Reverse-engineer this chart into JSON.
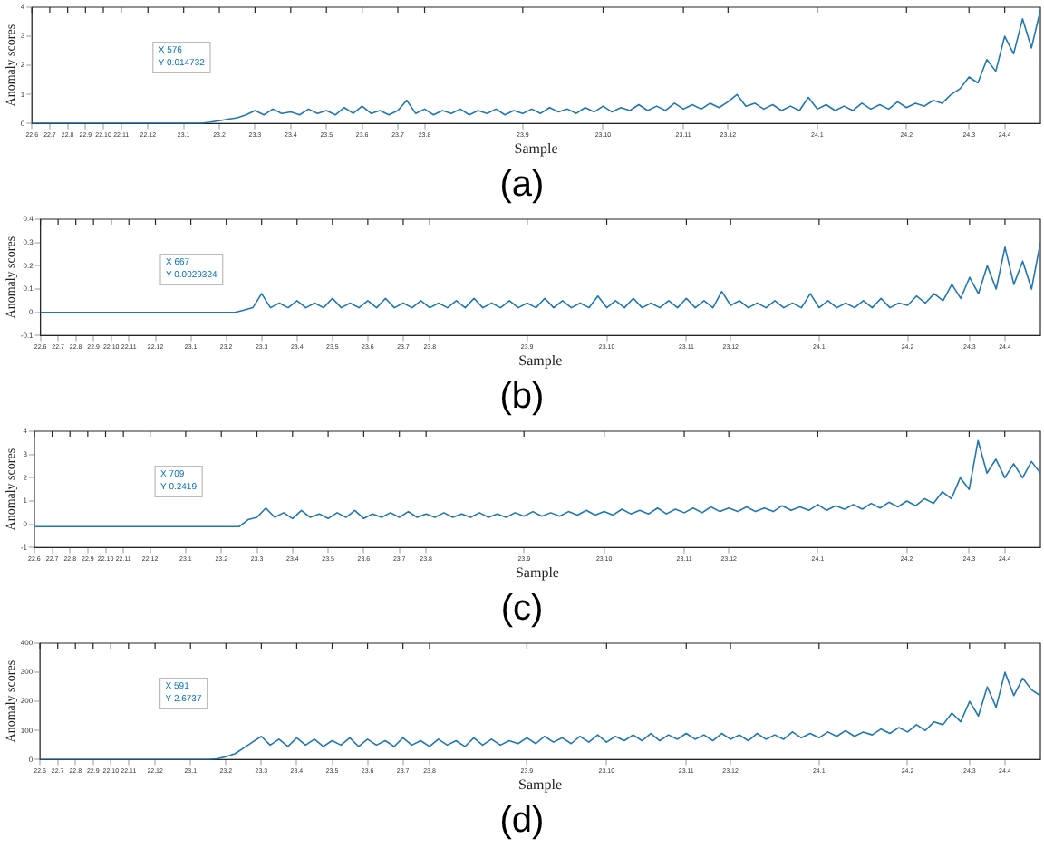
{
  "chart_data": [
    {
      "type": "line",
      "xlabel": "Sample",
      "ylabel": "Anomaly scores",
      "color": "#1f77b4",
      "ylim": [
        0,
        4
      ],
      "yticks": [
        0,
        1,
        2,
        3,
        4
      ],
      "categories": [
        "22.6",
        null,
        "22.7",
        null,
        "22.8",
        null,
        "22.9",
        null,
        "22.10",
        null,
        "22.11",
        null,
        null,
        "22.12",
        null,
        null,
        null,
        "23.1",
        null,
        null,
        null,
        "23.2",
        null,
        null,
        null,
        "23.3",
        null,
        null,
        null,
        "23.4",
        null,
        null,
        null,
        "23.5",
        null,
        null,
        null,
        "23.6",
        null,
        null,
        null,
        "23.7",
        null,
        null,
        "23.8",
        null,
        null,
        null,
        null,
        null,
        null,
        null,
        null,
        null,
        null,
        "23.9",
        null,
        null,
        null,
        null,
        null,
        null,
        null,
        null,
        "23.10",
        null,
        null,
        null,
        null,
        null,
        null,
        null,
        null,
        "23.11",
        null,
        null,
        null,
        null,
        "23.12",
        null,
        null,
        null,
        null,
        null,
        null,
        null,
        null,
        null,
        "24.1",
        null,
        null,
        null,
        null,
        null,
        null,
        null,
        null,
        null,
        "24.2",
        null,
        null,
        null,
        null,
        null,
        null,
        "24.3",
        null,
        null,
        null,
        "24.4",
        null,
        null,
        null,
        null
      ],
      "values": [
        0.01,
        0.01,
        0.01,
        0.01,
        0.01,
        0.01,
        0.01,
        0.01,
        0.01,
        0.01,
        0.01,
        0.01,
        0.01,
        0.01,
        0.01,
        0.01,
        0.01,
        0.01,
        0.01,
        0.01,
        0.05,
        0.1,
        0.15,
        0.2,
        0.3,
        0.45,
        0.3,
        0.5,
        0.35,
        0.4,
        0.3,
        0.5,
        0.35,
        0.45,
        0.3,
        0.55,
        0.35,
        0.6,
        0.35,
        0.45,
        0.3,
        0.45,
        0.8,
        0.35,
        0.5,
        0.3,
        0.45,
        0.35,
        0.5,
        0.3,
        0.45,
        0.35,
        0.5,
        0.3,
        0.45,
        0.35,
        0.5,
        0.35,
        0.55,
        0.4,
        0.5,
        0.35,
        0.55,
        0.4,
        0.6,
        0.4,
        0.55,
        0.45,
        0.65,
        0.45,
        0.6,
        0.45,
        0.7,
        0.5,
        0.65,
        0.5,
        0.7,
        0.55,
        0.75,
        1.0,
        0.6,
        0.7,
        0.5,
        0.65,
        0.45,
        0.6,
        0.45,
        0.9,
        0.5,
        0.65,
        0.45,
        0.6,
        0.45,
        0.7,
        0.5,
        0.65,
        0.5,
        0.75,
        0.55,
        0.7,
        0.6,
        0.8,
        0.7,
        1.0,
        1.2,
        1.6,
        1.4,
        2.2,
        1.8,
        3.0,
        2.4,
        3.6,
        2.6,
        3.9
      ],
      "annotations": [
        "X 576\nY 0.014732",
        "(a)"
      ]
    },
    {
      "type": "line",
      "xlabel": "Sample",
      "ylabel": "Anomaly scores",
      "color": "#1f77b4",
      "ylim": [
        -0.1,
        0.4
      ],
      "yticks": [
        -0.1,
        0,
        0.1,
        0.2,
        0.3,
        0.4
      ],
      "categories": [
        "22.6",
        null,
        "22.7",
        null,
        "22.8",
        null,
        "22.9",
        null,
        "22.10",
        null,
        "22.11",
        null,
        null,
        "22.12",
        null,
        null,
        null,
        "23.1",
        null,
        null,
        null,
        "23.2",
        null,
        null,
        null,
        "23.3",
        null,
        null,
        null,
        "23.4",
        null,
        null,
        null,
        "23.5",
        null,
        null,
        null,
        "23.6",
        null,
        null,
        null,
        "23.7",
        null,
        null,
        "23.8",
        null,
        null,
        null,
        null,
        null,
        null,
        null,
        null,
        null,
        null,
        "23.9",
        null,
        null,
        null,
        null,
        null,
        null,
        null,
        null,
        "23.10",
        null,
        null,
        null,
        null,
        null,
        null,
        null,
        null,
        "23.11",
        null,
        null,
        null,
        null,
        "23.12",
        null,
        null,
        null,
        null,
        null,
        null,
        null,
        null,
        null,
        "24.1",
        null,
        null,
        null,
        null,
        null,
        null,
        null,
        null,
        null,
        "24.2",
        null,
        null,
        null,
        null,
        null,
        null,
        "24.3",
        null,
        null,
        null,
        "24.4",
        null,
        null,
        null,
        null
      ],
      "values": [
        0,
        0,
        0,
        0,
        0,
        0,
        0,
        0,
        0,
        0,
        0,
        0,
        0,
        0,
        0,
        0,
        0,
        0,
        0,
        0,
        0,
        0,
        0,
        0.01,
        0.02,
        0.08,
        0.02,
        0.04,
        0.02,
        0.05,
        0.02,
        0.04,
        0.02,
        0.06,
        0.02,
        0.04,
        0.02,
        0.05,
        0.02,
        0.06,
        0.02,
        0.04,
        0.02,
        0.05,
        0.02,
        0.04,
        0.02,
        0.05,
        0.02,
        0.06,
        0.02,
        0.04,
        0.02,
        0.05,
        0.02,
        0.04,
        0.02,
        0.06,
        0.02,
        0.05,
        0.02,
        0.04,
        0.02,
        0.07,
        0.02,
        0.05,
        0.02,
        0.06,
        0.02,
        0.04,
        0.02,
        0.05,
        0.02,
        0.06,
        0.02,
        0.05,
        0.02,
        0.09,
        0.03,
        0.05,
        0.02,
        0.04,
        0.02,
        0.05,
        0.02,
        0.04,
        0.02,
        0.08,
        0.02,
        0.05,
        0.02,
        0.04,
        0.02,
        0.05,
        0.02,
        0.06,
        0.02,
        0.04,
        0.03,
        0.07,
        0.04,
        0.08,
        0.05,
        0.12,
        0.06,
        0.15,
        0.08,
        0.2,
        0.1,
        0.28,
        0.12,
        0.22,
        0.1,
        0.3
      ],
      "annotations": [
        "X 667\nY 0.0029324",
        "(b)"
      ]
    },
    {
      "type": "line",
      "xlabel": "Sample",
      "ylabel": "Anomaly scores",
      "color": "#1f77b4",
      "ylim": [
        -1,
        4
      ],
      "yticks": [
        -1,
        0,
        1,
        2,
        3,
        4
      ],
      "categories": [
        "22.6",
        null,
        "22.7",
        null,
        "22.8",
        null,
        "22.9",
        null,
        "22.10",
        null,
        "22.11",
        null,
        null,
        "22.12",
        null,
        null,
        null,
        "23.1",
        null,
        null,
        null,
        "23.2",
        null,
        null,
        null,
        "23.3",
        null,
        null,
        null,
        "23.4",
        null,
        null,
        null,
        "23.5",
        null,
        null,
        null,
        "23.6",
        null,
        null,
        null,
        "23.7",
        null,
        null,
        "23.8",
        null,
        null,
        null,
        null,
        null,
        null,
        null,
        null,
        null,
        null,
        "23.9",
        null,
        null,
        null,
        null,
        null,
        null,
        null,
        null,
        "23.10",
        null,
        null,
        null,
        null,
        null,
        null,
        null,
        null,
        "23.11",
        null,
        null,
        null,
        null,
        "23.12",
        null,
        null,
        null,
        null,
        null,
        null,
        null,
        null,
        null,
        "24.1",
        null,
        null,
        null,
        null,
        null,
        null,
        null,
        null,
        null,
        "24.2",
        null,
        null,
        null,
        null,
        null,
        null,
        "24.3",
        null,
        null,
        null,
        "24.4",
        null,
        null,
        null,
        null
      ],
      "values": [
        -0.1,
        -0.1,
        -0.1,
        -0.1,
        -0.1,
        -0.1,
        -0.1,
        -0.1,
        -0.1,
        -0.1,
        -0.1,
        -0.1,
        -0.1,
        -0.1,
        -0.1,
        -0.1,
        -0.1,
        -0.1,
        -0.1,
        -0.1,
        -0.1,
        -0.1,
        -0.1,
        -0.1,
        0.2,
        0.3,
        0.7,
        0.3,
        0.5,
        0.25,
        0.6,
        0.3,
        0.45,
        0.25,
        0.5,
        0.3,
        0.6,
        0.25,
        0.45,
        0.3,
        0.5,
        0.3,
        0.55,
        0.3,
        0.45,
        0.3,
        0.5,
        0.3,
        0.45,
        0.3,
        0.5,
        0.3,
        0.45,
        0.3,
        0.5,
        0.35,
        0.55,
        0.35,
        0.5,
        0.35,
        0.55,
        0.4,
        0.6,
        0.4,
        0.55,
        0.4,
        0.65,
        0.45,
        0.6,
        0.45,
        0.7,
        0.45,
        0.65,
        0.5,
        0.7,
        0.5,
        0.75,
        0.55,
        0.7,
        0.55,
        0.75,
        0.55,
        0.7,
        0.55,
        0.8,
        0.6,
        0.75,
        0.6,
        0.85,
        0.6,
        0.8,
        0.65,
        0.85,
        0.65,
        0.9,
        0.7,
        0.95,
        0.75,
        1.0,
        0.8,
        1.1,
        0.9,
        1.4,
        1.1,
        2.0,
        1.5,
        3.6,
        2.2,
        2.8,
        2.0,
        2.6,
        2.0,
        2.7,
        2.2
      ],
      "annotations": [
        "X 709\nY 0.2419",
        "(c)"
      ]
    },
    {
      "type": "line",
      "xlabel": "Sample",
      "ylabel": "Anomaly scores",
      "color": "#1f77b4",
      "ylim": [
        0,
        400
      ],
      "yticks": [
        0,
        100,
        200,
        300,
        400
      ],
      "categories": [
        "22.6",
        null,
        "22.7",
        null,
        "22.8",
        null,
        "22.9",
        null,
        "22.10",
        null,
        "22.11",
        null,
        null,
        "22.12",
        null,
        null,
        null,
        "23.1",
        null,
        null,
        null,
        "23.2",
        null,
        null,
        null,
        "23.3",
        null,
        null,
        null,
        "23.4",
        null,
        null,
        null,
        "23.5",
        null,
        null,
        null,
        "23.6",
        null,
        null,
        null,
        "23.7",
        null,
        null,
        "23.8",
        null,
        null,
        null,
        null,
        null,
        null,
        null,
        null,
        null,
        null,
        "23.9",
        null,
        null,
        null,
        null,
        null,
        null,
        null,
        null,
        "23.10",
        null,
        null,
        null,
        null,
        null,
        null,
        null,
        null,
        "23.11",
        null,
        null,
        null,
        null,
        "23.12",
        null,
        null,
        null,
        null,
        null,
        null,
        null,
        null,
        null,
        "24.1",
        null,
        null,
        null,
        null,
        null,
        null,
        null,
        null,
        null,
        "24.2",
        null,
        null,
        null,
        null,
        null,
        null,
        "24.3",
        null,
        null,
        null,
        "24.4",
        null,
        null,
        null,
        null
      ],
      "values": [
        0,
        0,
        0,
        0,
        0,
        0,
        0,
        0,
        0,
        0,
        0,
        0,
        0,
        0,
        0,
        0,
        0,
        0,
        0,
        0,
        3,
        10,
        20,
        40,
        60,
        80,
        50,
        70,
        45,
        75,
        50,
        70,
        45,
        65,
        50,
        75,
        45,
        70,
        50,
        65,
        45,
        75,
        50,
        65,
        45,
        70,
        50,
        65,
        45,
        75,
        50,
        70,
        50,
        65,
        55,
        75,
        55,
        80,
        60,
        75,
        55,
        80,
        60,
        85,
        60,
        80,
        65,
        85,
        65,
        90,
        65,
        85,
        70,
        90,
        70,
        85,
        65,
        90,
        70,
        85,
        65,
        90,
        70,
        85,
        70,
        95,
        75,
        90,
        75,
        95,
        80,
        100,
        80,
        95,
        85,
        105,
        90,
        110,
        95,
        120,
        100,
        130,
        120,
        160,
        130,
        200,
        150,
        250,
        180,
        300,
        220,
        280,
        240,
        220
      ],
      "annotations": [
        "X 591\nY 2.6737",
        "(d)"
      ]
    }
  ]
}
